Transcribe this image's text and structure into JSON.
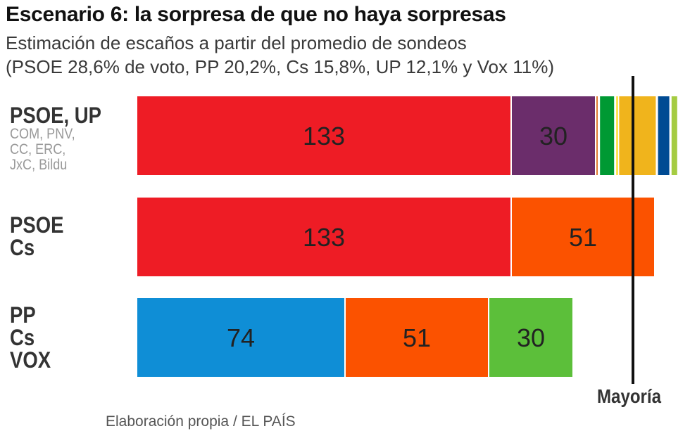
{
  "title": "Escenario 6: la sorpresa de que no haya sorpresas",
  "subtitle_line1": "Estimación de escaños a partir del promedio de sondeos",
  "subtitle_line2": "(PSOE 28,6% de voto, PP 20,2%, Cs 15,8%, UP 12,1% y Vox 11%)",
  "rows": [
    {
      "label_lines": [
        "PSOE, UP"
      ],
      "sub_lines": [
        "COM, PNV,",
        "CC, ERC,",
        "JxC, Bildu"
      ]
    },
    {
      "label_lines": [
        "PSOE",
        "Cs"
      ],
      "sub_lines": []
    },
    {
      "label_lines": [
        "PP",
        "Cs",
        "VOX"
      ],
      "sub_lines": []
    }
  ],
  "majority_label": "Mayoría",
  "source": "Elaboración propia / EL PAÍS",
  "chart_data": {
    "type": "bar",
    "orientation": "horizontal",
    "stacked": true,
    "majority_seats": 176,
    "series": [
      {
        "row": 0,
        "segments": [
          {
            "party": "PSOE",
            "value": 133,
            "color": "#ee1c25",
            "label": "133"
          },
          {
            "party": "UP",
            "value": 30,
            "color": "#6b2d6b",
            "label": "30"
          },
          {
            "party": "COM",
            "value": 1,
            "color": "#e07b30",
            "label": ""
          },
          {
            "party": "Other",
            "value": 0.3,
            "color": "#ffffff",
            "label": ""
          },
          {
            "party": "PNV",
            "value": 5.5,
            "color": "#009933",
            "label": ""
          },
          {
            "party": "Other2",
            "value": 0.3,
            "color": "#ffffff",
            "label": ""
          },
          {
            "party": "CC",
            "value": 1,
            "color": "#ffd700",
            "label": ""
          },
          {
            "party": "ERC",
            "value": 13.5,
            "color": "#f0b41c",
            "label": ""
          },
          {
            "party": "Other3",
            "value": 0.3,
            "color": "#ffffff",
            "label": ""
          },
          {
            "party": "JxC",
            "value": 4.5,
            "color": "#004b93",
            "label": ""
          },
          {
            "party": "Other4",
            "value": 0.3,
            "color": "#ffffff",
            "label": ""
          },
          {
            "party": "Bildu",
            "value": 2.5,
            "color": "#a5cc42",
            "label": ""
          }
        ]
      },
      {
        "row": 1,
        "segments": [
          {
            "party": "PSOE",
            "value": 133,
            "color": "#ee1c25",
            "label": "133"
          },
          {
            "party": "Cs",
            "value": 51,
            "color": "#fb5200",
            "label": "51"
          }
        ]
      },
      {
        "row": 2,
        "segments": [
          {
            "party": "PP",
            "value": 74,
            "color": "#0f8ed6",
            "label": "74"
          },
          {
            "party": "Cs",
            "value": 51,
            "color": "#fb5200",
            "label": "51"
          },
          {
            "party": "VOX",
            "value": 30,
            "color": "#5cbf3a",
            "label": "30"
          }
        ]
      }
    ]
  }
}
